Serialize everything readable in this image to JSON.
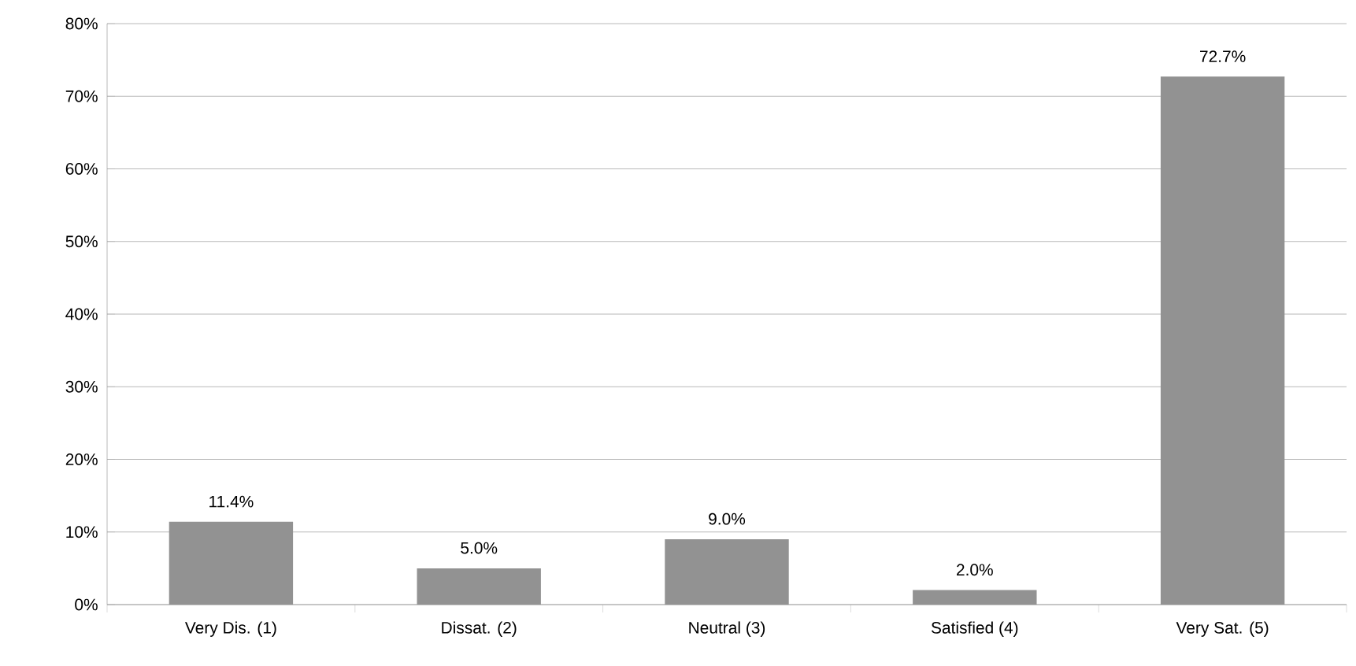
{
  "chart_data": {
    "type": "bar",
    "categories": [
      "Very Dis. (1)",
      "Dissat. (2)",
      "Neutral (3)",
      "Satisfied (4)",
      "Very Sat. (5)"
    ],
    "values": [
      11.4,
      5.0,
      9.0,
      2.0,
      72.7
    ],
    "value_labels": [
      "11.4%",
      "5.0%",
      "9.0%",
      "2.0%",
      "72.7%"
    ],
    "color": "#929292",
    "ylim": [
      0,
      80
    ],
    "yticks": [
      {
        "value": 0,
        "label": "0%"
      },
      {
        "value": 10,
        "label": "10%"
      },
      {
        "value": 20,
        "label": "20%"
      },
      {
        "value": 30,
        "label": "30%"
      },
      {
        "value": 40,
        "label": "40%"
      },
      {
        "value": 50,
        "label": "50%"
      },
      {
        "value": 60,
        "label": "60%"
      },
      {
        "value": 70,
        "label": "70%"
      },
      {
        "value": 80,
        "label": "80%"
      }
    ],
    "grid": "y"
  }
}
